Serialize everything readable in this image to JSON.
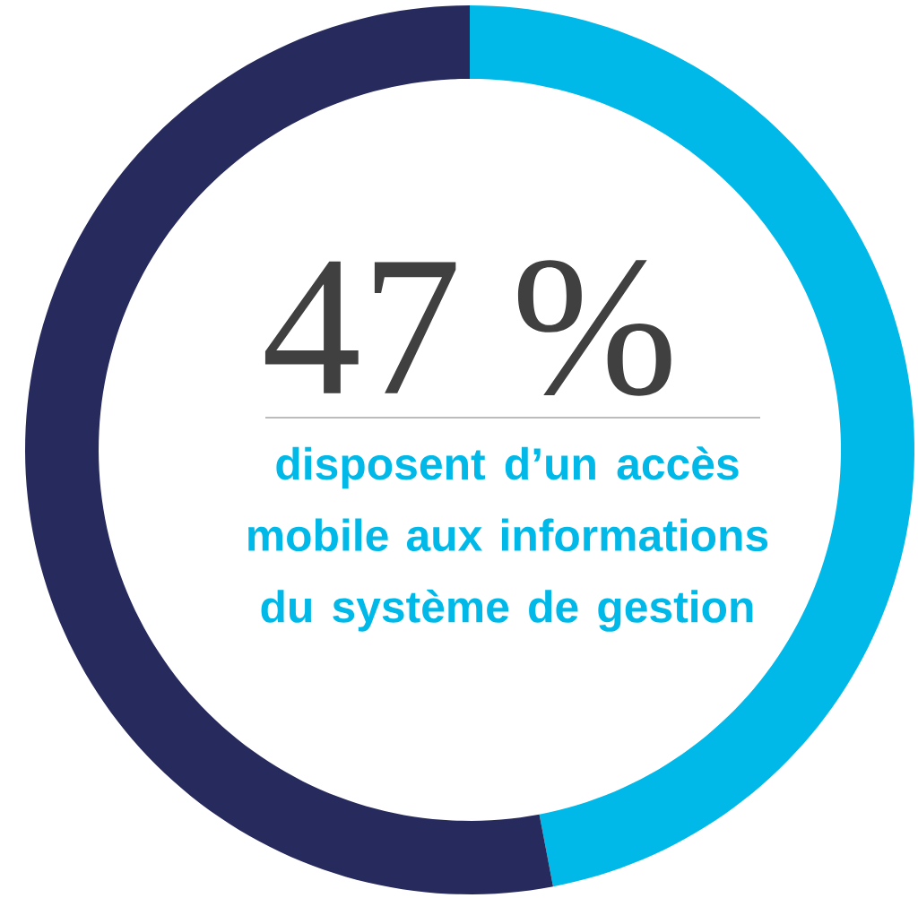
{
  "chart_data": {
    "type": "donut",
    "categories": [
      null,
      null
    ],
    "values": [
      47,
      53
    ],
    "colors": [
      "#00b9e8",
      "#272a5c"
    ],
    "annotations": [
      "47 %",
      "disposent d’un accès mobile aux informations du système de gestion"
    ]
  }
}
